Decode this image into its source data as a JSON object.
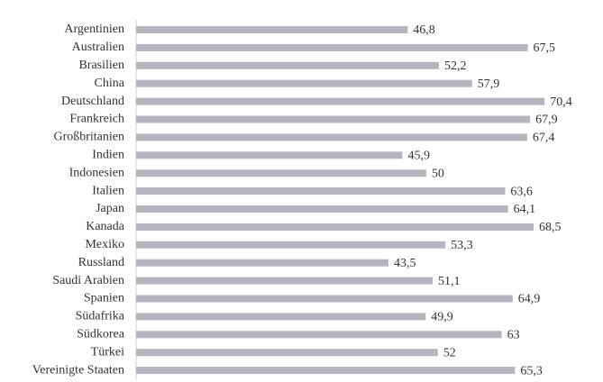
{
  "chart_data": {
    "type": "bar",
    "orientation": "horizontal",
    "categories": [
      "Argentinien",
      "Australien",
      "Brasilien",
      "China",
      "Deutschland",
      "Frankreich",
      "Großbritanien",
      "Indien",
      "Indonesien",
      "Italien",
      "Japan",
      "Kanada",
      "Mexiko",
      "Russland",
      "Saudi Arabien",
      "Spanien",
      "Südafrika",
      "Südkorea",
      "Türkei",
      "Vereinigte Staaten"
    ],
    "values": [
      46.8,
      67.5,
      52.2,
      57.9,
      70.4,
      67.9,
      67.4,
      45.9,
      50,
      63.6,
      64.1,
      68.5,
      53.3,
      43.5,
      51.1,
      64.9,
      49.9,
      63,
      52,
      65.3
    ],
    "value_labels": [
      "46,8",
      "67,5",
      "52,2",
      "57,9",
      "70,4",
      "67,9",
      "67,4",
      "45,9",
      "50",
      "63,6",
      "64,1",
      "68,5",
      "53,3",
      "43,5",
      "51,1",
      "64,9",
      "49,9",
      "63",
      "52",
      "65,3"
    ],
    "color": "#b5b5bf",
    "xlim": [
      0,
      80
    ]
  }
}
